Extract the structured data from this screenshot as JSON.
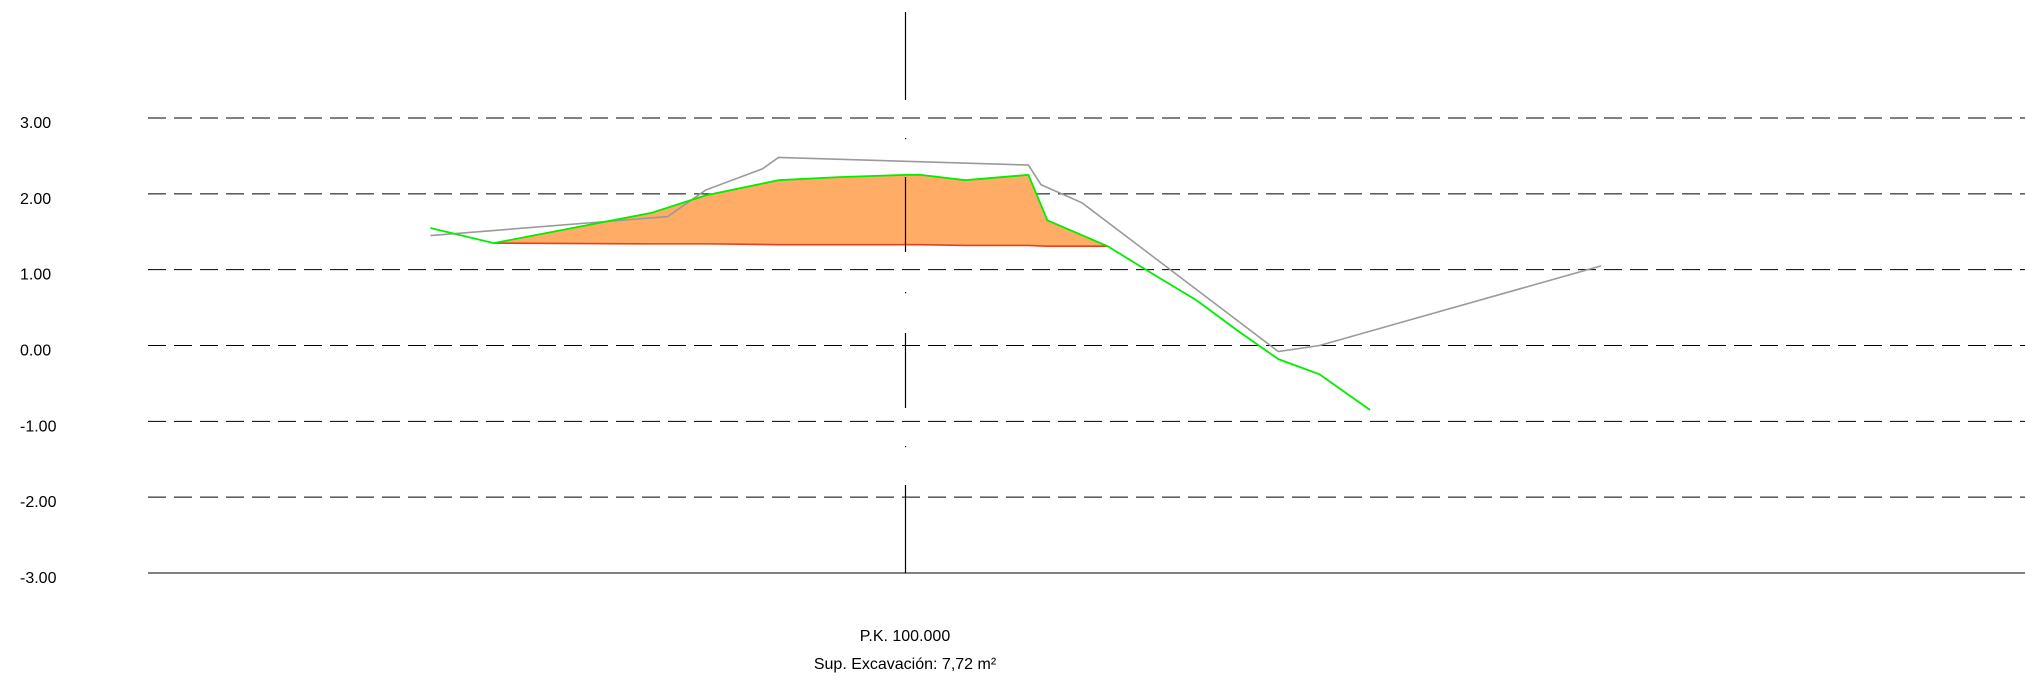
{
  "colors": {
    "background": "#ffffff",
    "grid": "#000000",
    "axis": "#000000",
    "terrain_line": "#00ee00",
    "excavation_fill": "#ffad66",
    "excavation_base": "#e8401c",
    "existing_profile": "#9a9a9a",
    "text": "#000000"
  },
  "section": {
    "pk_label": "P.K. 100.000",
    "excavation_label": "Sup. Excavación: 7,72 m²"
  },
  "chart_data": {
    "type": "line",
    "title": "",
    "xlabel": "",
    "ylabel": "",
    "ylim": [
      -3.0,
      3.0
    ],
    "xlim": [
      -15.0,
      22.0
    ],
    "grid": true,
    "y_ticks": [
      "3.00",
      "2.00",
      "1.00",
      "0.00",
      "-1.00",
      "-2.00",
      "-3.00"
    ],
    "y_tick_values": [
      3,
      2,
      1,
      0,
      -1,
      -2,
      -3
    ],
    "centerline_x": 0,
    "series": [
      {
        "role": "terrain",
        "x": [
          -15.0,
          -13.0,
          -8.0,
          -6.3,
          -4.0,
          -2.1,
          0.0,
          0.5,
          1.9,
          3.9,
          4.5,
          6.4,
          8.2,
          9.2,
          10.5,
          11.8,
          13.1,
          14.7
        ],
        "y": [
          1.55,
          1.35,
          1.75,
          1.98,
          2.18,
          2.22,
          2.25,
          2.25,
          2.18,
          2.25,
          1.65,
          1.31,
          0.85,
          0.6,
          0.2,
          -0.18,
          -0.38,
          -0.85
        ]
      },
      {
        "role": "excavation",
        "x": [
          -13.0,
          -8.0,
          -6.3,
          -4.0,
          -2.1,
          0.0,
          0.5,
          1.9,
          3.9,
          4.5,
          6.4
        ],
        "y_top": [
          1.35,
          1.75,
          1.98,
          2.18,
          2.22,
          2.25,
          2.25,
          2.18,
          2.25,
          1.65,
          1.31
        ],
        "y_bottom": [
          1.35,
          1.34,
          1.34,
          1.33,
          1.33,
          1.33,
          1.33,
          1.32,
          1.32,
          1.31,
          1.31
        ]
      },
      {
        "role": "existing",
        "x": [
          -15.0,
          -7.5,
          -6.3,
          -4.5,
          -4.0,
          3.9,
          4.3,
          5.6,
          11.8,
          13.1,
          22.0
        ],
        "y": [
          1.45,
          1.7,
          2.05,
          2.33,
          2.48,
          2.38,
          2.12,
          1.88,
          -0.08,
          0.0,
          1.05
        ]
      }
    ]
  }
}
